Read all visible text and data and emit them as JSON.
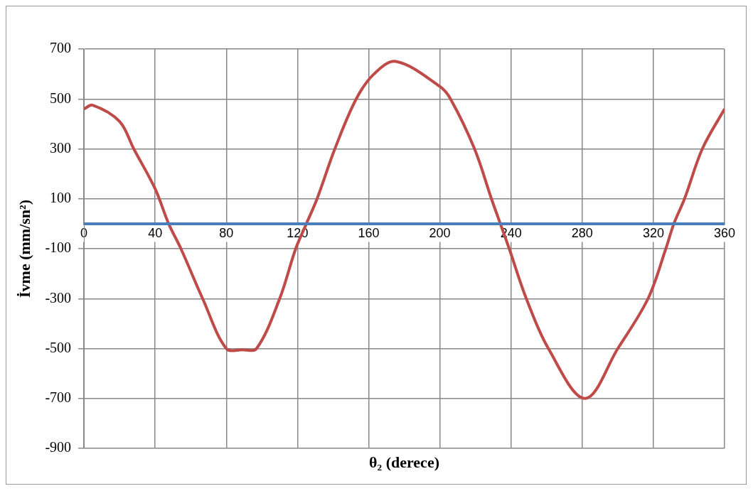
{
  "chart_data": {
    "type": "line",
    "xlabel": "θ₂ (derece)",
    "ylabel": "İvme (mm/sn²)",
    "xlim": [
      0,
      360
    ],
    "xticks": [
      0,
      40,
      80,
      120,
      160,
      200,
      240,
      280,
      320,
      360
    ],
    "ylim": [
      -900,
      700
    ],
    "yticks": [
      -900,
      -700,
      -500,
      -300,
      -100,
      100,
      300,
      500,
      700
    ],
    "grid": true,
    "series": [
      {
        "color": "#4a7ebb",
        "x": [
          0,
          360
        ],
        "values": [
          0,
          0
        ]
      },
      {
        "color": "#be4b48",
        "x": [
          0,
          5,
          20,
          28,
          40,
          47.6,
          54.5,
          66.7,
          80,
          89,
          97,
          110,
          119,
          125,
          131,
          141,
          153,
          163,
          175.4,
          200,
          206,
          219.5,
          229,
          234,
          239,
          248.6,
          261,
          281.6,
          300,
          317,
          327,
          331.5,
          337.5,
          347.5,
          360
        ],
        "values": [
          460,
          475,
          410,
          300,
          140,
          0,
          -100,
          -300,
          -500,
          -505,
          -500,
          -300,
          -100,
          0,
          100,
          300,
          500,
          600,
          650,
          550,
          500,
          300,
          100,
          0,
          -100,
          -300,
          -500,
          -700,
          -500,
          -300,
          -100,
          0,
          100,
          300,
          460
        ]
      }
    ]
  }
}
